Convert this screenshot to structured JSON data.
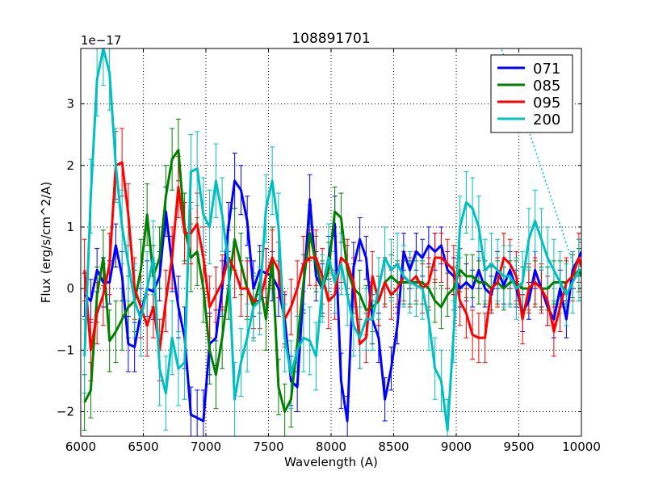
{
  "chart_data": {
    "type": "line",
    "title": "108891701",
    "xlabel": "Wavelength (A)",
    "ylabel": "Flux (erg/s/cm^2/A)",
    "y_offset_label": "1e−17",
    "xlim": [
      6000,
      10000
    ],
    "ylim": [
      -2.4,
      3.9
    ],
    "x_ticks": [
      6000,
      6500,
      7000,
      7500,
      8000,
      8500,
      9000,
      9500,
      10000
    ],
    "x_tick_labels": [
      "6000",
      "6500",
      "7000",
      "7500",
      "8000",
      "8500",
      "9000",
      "9500",
      "10000"
    ],
    "y_ticks": [
      -2,
      -1,
      0,
      1,
      2,
      3
    ],
    "y_tick_labels": [
      "−2",
      "−1",
      "0",
      "1",
      "2",
      "3"
    ],
    "grid": true,
    "legend_position": "top-right",
    "series": [
      {
        "name": "071",
        "color": "#0000ff",
        "x": [
          6030,
          6080,
          6130,
          6180,
          6230,
          6280,
          6330,
          6380,
          6430,
          6480,
          6530,
          6580,
          6630,
          6680,
          6730,
          6780,
          6830,
          6880,
          6930,
          6980,
          7030,
          7080,
          7130,
          7180,
          7230,
          7280,
          7330,
          7380,
          7430,
          7480,
          7530,
          7580,
          7630,
          7680,
          7730,
          7780,
          7830,
          7880,
          7930,
          7980,
          8030,
          8080,
          8130,
          8180,
          8230,
          8280,
          8330,
          8380,
          8430,
          8480,
          8530,
          8580,
          8630,
          8680,
          8730,
          8780,
          8830,
          8880,
          8930,
          8980,
          9030,
          9080,
          9130,
          9180,
          9230,
          9280,
          9330,
          9380,
          9430,
          9480,
          9530,
          9580,
          9630,
          9680,
          9730,
          9780,
          9830,
          9880,
          9930,
          9980,
          10000
        ],
        "y": [
          -0.1,
          -0.2,
          0.3,
          0.1,
          0.1,
          0.7,
          0.2,
          -0.9,
          -0.95,
          -0.4,
          0.0,
          -0.05,
          0.2,
          1.25,
          0.4,
          -0.3,
          -0.8,
          -2.05,
          -2.1,
          -2.15,
          -0.9,
          -0.8,
          0.0,
          1.0,
          1.75,
          1.6,
          1.1,
          0.0,
          0.3,
          0.25,
          0.2,
          0.0,
          -0.5,
          -1.5,
          -1.6,
          0.0,
          1.45,
          0.2,
          0.0,
          0.5,
          1.05,
          -1.5,
          -2.15,
          0.35,
          0.8,
          0.5,
          -0.5,
          -0.8,
          -1.8,
          -1.3,
          -0.6,
          0.6,
          0.3,
          0.6,
          0.5,
          0.7,
          0.6,
          0.7,
          0.3,
          0.2,
          0.0,
          0.1,
          0.0,
          0.3,
          0.0,
          -0.1,
          0.3,
          0.05,
          0.3,
          0.0,
          -0.4,
          -0.2,
          0.3,
          0.0,
          -0.3,
          -0.5,
          0.0,
          -0.5,
          0.3,
          0.5,
          0.6
        ],
        "err": [
          0.35,
          0.35,
          0.35,
          0.4,
          0.35,
          0.35,
          0.4,
          0.45,
          0.4,
          0.4,
          0.45,
          0.45,
          0.4,
          0.4,
          0.45,
          0.5,
          0.5,
          0.45,
          0.45,
          0.5,
          0.5,
          0.45,
          0.45,
          0.4,
          0.45,
          0.4,
          0.4,
          0.45,
          0.4,
          0.4,
          0.4,
          0.45,
          0.4,
          0.4,
          0.4,
          0.4,
          0.4,
          0.4,
          0.4,
          0.35,
          0.45,
          0.45,
          0.4,
          0.4,
          0.35,
          0.35,
          0.4,
          0.4,
          0.35,
          0.35,
          0.3,
          0.3,
          0.3,
          0.3,
          0.3,
          0.3,
          0.3,
          0.3,
          0.3,
          0.3,
          0.3,
          0.3,
          0.3,
          0.3,
          0.3,
          0.3,
          0.3,
          0.3,
          0.3,
          0.3,
          0.3,
          0.3,
          0.3,
          0.3,
          0.3,
          0.3,
          0.3,
          0.3,
          0.3,
          0.3,
          0.3
        ]
      },
      {
        "name": "085",
        "color": "#008000",
        "x": [
          6030,
          6080,
          6130,
          6180,
          6230,
          6280,
          6330,
          6380,
          6430,
          6480,
          6530,
          6580,
          6630,
          6680,
          6730,
          6780,
          6830,
          6880,
          6930,
          6980,
          7030,
          7080,
          7130,
          7180,
          7230,
          7280,
          7330,
          7380,
          7430,
          7480,
          7530,
          7580,
          7630,
          7680,
          7730,
          7780,
          7830,
          7880,
          7930,
          7980,
          8030,
          8080,
          8130,
          8180,
          8230,
          8280,
          8330,
          8380,
          8430,
          8480,
          8530,
          8580,
          8630,
          8680,
          8730,
          8780,
          8830,
          8880,
          8930,
          8980,
          9030,
          9080,
          9130,
          9180,
          9230,
          9280,
          9330,
          9380,
          9430,
          9480,
          9530,
          9580,
          9630,
          9680,
          9730,
          9780,
          9830,
          9880,
          9930,
          9980,
          10000
        ],
        "y": [
          -1.85,
          -1.65,
          -0.1,
          0.5,
          -0.85,
          -0.7,
          -0.5,
          -0.3,
          -0.2,
          0.3,
          1.2,
          0.2,
          0.5,
          1.5,
          2.1,
          2.25,
          1.0,
          0.5,
          0.6,
          0.0,
          -1.0,
          -1.4,
          -0.8,
          0.0,
          0.8,
          0.4,
          0.0,
          -0.3,
          0.1,
          -0.5,
          0.5,
          -1.6,
          -2.0,
          -1.8,
          -0.9,
          0.1,
          0.9,
          0.4,
          0.0,
          0.3,
          1.25,
          1.15,
          0.3,
          0.0,
          -0.1,
          -0.35,
          -0.3,
          -0.2,
          0.1,
          0.2,
          0.1,
          0.1,
          0.1,
          0.1,
          0.1,
          0.0,
          -0.2,
          -0.3,
          -0.1,
          0.0,
          0.3,
          0.2,
          0.2,
          0.1,
          0.1,
          0.0,
          0.1,
          0.0,
          0.1,
          0.1,
          0.0,
          0.0,
          0.1,
          0.0,
          0.0,
          0.1,
          0.1,
          0.1,
          0.2,
          0.3,
          0.2
        ],
        "err": [
          0.45,
          0.45,
          0.45,
          0.45,
          0.5,
          0.5,
          0.5,
          0.5,
          0.5,
          0.5,
          0.5,
          0.5,
          0.5,
          0.5,
          0.5,
          0.5,
          0.55,
          0.55,
          0.55,
          0.55,
          0.55,
          0.55,
          0.5,
          0.5,
          0.5,
          0.5,
          0.5,
          0.5,
          0.5,
          0.5,
          0.5,
          0.45,
          0.45,
          0.45,
          0.45,
          0.45,
          0.45,
          0.45,
          0.45,
          0.45,
          0.4,
          0.4,
          0.4,
          0.4,
          0.4,
          0.4,
          0.4,
          0.4,
          0.35,
          0.35,
          0.35,
          0.35,
          0.35,
          0.35,
          0.35,
          0.35,
          0.35,
          0.35,
          0.35,
          0.35,
          0.35,
          0.35,
          0.35,
          0.35,
          0.35,
          0.35,
          0.35,
          0.35,
          0.35,
          0.35,
          0.35,
          0.35,
          0.35,
          0.35,
          0.35,
          0.35,
          0.35,
          0.35,
          0.35,
          0.35,
          0.35
        ]
      },
      {
        "name": "095",
        "color": "#ff0000",
        "x": [
          6030,
          6080,
          6130,
          6180,
          6230,
          6280,
          6330,
          6380,
          6430,
          6480,
          6530,
          6580,
          6630,
          6680,
          6730,
          6780,
          6830,
          6880,
          6930,
          6980,
          7030,
          7080,
          7130,
          7180,
          7230,
          7280,
          7330,
          7380,
          7430,
          7480,
          7530,
          7580,
          7630,
          7680,
          7730,
          7780,
          7830,
          7880,
          7930,
          7980,
          8030,
          8080,
          8130,
          8180,
          8230,
          8280,
          8330,
          8380,
          8430,
          8480,
          8530,
          8580,
          8630,
          8680,
          8730,
          8780,
          8830,
          8880,
          8930,
          8980,
          9030,
          9080,
          9130,
          9180,
          9230,
          9280,
          9330,
          9380,
          9430,
          9480,
          9530,
          9580,
          9630,
          9680,
          9730,
          9780,
          9830,
          9880,
          9930,
          9980,
          10000
        ],
        "y": [
          0.3,
          -1.0,
          -0.4,
          -0.1,
          0.4,
          2.0,
          2.05,
          1.2,
          0.0,
          -0.3,
          -0.6,
          -0.3,
          -1.0,
          -0.2,
          0.5,
          1.65,
          0.9,
          0.9,
          1.05,
          0.5,
          -0.3,
          -0.1,
          0.1,
          0.5,
          0.3,
          0.0,
          0.0,
          -0.2,
          -0.2,
          0.2,
          0.5,
          0.3,
          -0.5,
          -0.3,
          0.0,
          0.4,
          0.5,
          0.5,
          0.2,
          -0.2,
          -0.1,
          0.5,
          0.4,
          0.1,
          -0.9,
          -0.8,
          0.2,
          -0.2,
          0.1,
          -0.1,
          0.0,
          0.2,
          0.1,
          0.2,
          0.0,
          0.1,
          0.5,
          0.5,
          0.4,
          0.3,
          -0.2,
          -0.4,
          -0.75,
          -0.8,
          -0.8,
          0.0,
          0.1,
          0.5,
          0.4,
          0.2,
          -0.5,
          0.0,
          0.1,
          0.0,
          -0.2,
          -0.7,
          -0.3,
          0.1,
          0.2,
          0.5,
          0.35
        ],
        "err": [
          0.5,
          0.5,
          0.5,
          0.5,
          0.5,
          0.55,
          0.55,
          0.5,
          0.5,
          0.5,
          0.5,
          0.5,
          0.5,
          0.5,
          0.5,
          0.5,
          0.5,
          0.5,
          0.5,
          0.5,
          0.5,
          0.45,
          0.45,
          0.45,
          0.45,
          0.45,
          0.45,
          0.45,
          0.45,
          0.45,
          0.45,
          0.45,
          0.45,
          0.45,
          0.45,
          0.45,
          0.45,
          0.45,
          0.45,
          0.45,
          0.4,
          0.4,
          0.4,
          0.4,
          0.4,
          0.4,
          0.4,
          0.4,
          0.4,
          0.4,
          0.4,
          0.4,
          0.4,
          0.4,
          0.4,
          0.4,
          0.4,
          0.4,
          0.4,
          0.4,
          0.4,
          0.4,
          0.4,
          0.4,
          0.4,
          0.4,
          0.4,
          0.4,
          0.4,
          0.4,
          0.4,
          0.4,
          0.4,
          0.4,
          0.4,
          0.4,
          0.4,
          0.4,
          0.4,
          0.4,
          0.4
        ]
      },
      {
        "name": "200",
        "color": "#00bfbf",
        "x": [
          6030,
          6080,
          6130,
          6180,
          6230,
          6280,
          6330,
          6380,
          6430,
          6480,
          6530,
          6580,
          6630,
          6680,
          6730,
          6780,
          6830,
          6880,
          6930,
          6980,
          7030,
          7080,
          7130,
          7180,
          7230,
          7280,
          7330,
          7380,
          7430,
          7480,
          7530,
          7580,
          7630,
          7680,
          7730,
          7780,
          7830,
          7880,
          7930,
          7980,
          8030,
          8080,
          8130,
          8180,
          8230,
          8280,
          8330,
          8380,
          8430,
          8480,
          8530,
          8580,
          8630,
          8680,
          8730,
          8780,
          8830,
          8880,
          8930,
          8980,
          9030,
          9080,
          9130,
          9180,
          9230,
          9280,
          9330,
          9380,
          9430,
          9480,
          9530,
          9580,
          9630,
          9680,
          9730,
          9780,
          9830,
          9880,
          9930,
          9980,
          10000
        ],
        "y": [
          -1.1,
          1.5,
          3.4,
          3.9,
          3.5,
          2.0,
          1.0,
          0.4,
          -0.2,
          -0.5,
          0.0,
          0.5,
          -1.3,
          -1.7,
          -0.8,
          -1.3,
          -1.2,
          1.9,
          1.95,
          1.2,
          1.0,
          1.75,
          1.2,
          0.4,
          -1.8,
          -1.2,
          -0.8,
          -0.3,
          -0.2,
          1.3,
          1.75,
          1.0,
          -0.8,
          -1.4,
          -1.0,
          -0.8,
          -0.85,
          -1.1,
          0.0,
          0.5,
          0.1,
          0.4,
          -0.1,
          -0.6,
          -0.8,
          -0.5,
          -0.5,
          0.0,
          0.5,
          0.3,
          0.4,
          0.2,
          0.1,
          0.05,
          0.0,
          -0.5,
          -1.3,
          -1.5,
          -2.3,
          -0.7,
          1.0,
          1.4,
          1.3,
          1.0,
          0.3,
          0.4,
          0.3,
          0.2,
          0.2,
          0.0,
          0.1,
          0.8,
          1.1,
          0.8,
          0.5,
          0.3,
          0.1,
          -0.1,
          0.1,
          0.3,
          0.3
        ],
        "err": [
          0.6,
          0.6,
          0.6,
          0.6,
          0.6,
          0.6,
          0.6,
          0.6,
          0.6,
          0.6,
          0.6,
          0.6,
          0.6,
          0.6,
          0.6,
          0.6,
          0.6,
          0.6,
          0.6,
          0.6,
          0.6,
          0.6,
          0.6,
          0.6,
          0.6,
          0.55,
          0.55,
          0.55,
          0.55,
          0.55,
          0.55,
          0.55,
          0.55,
          0.55,
          0.55,
          0.55,
          0.55,
          0.55,
          0.55,
          0.55,
          0.5,
          0.5,
          0.5,
          0.5,
          0.5,
          0.5,
          0.5,
          0.5,
          0.5,
          0.5,
          0.5,
          0.5,
          0.5,
          0.5,
          0.5,
          0.5,
          0.5,
          0.5,
          0.5,
          0.5,
          0.5,
          0.5,
          0.5,
          0.5,
          0.5,
          0.5,
          0.5,
          0.5,
          0.5,
          0.5,
          0.5,
          0.5,
          0.5,
          0.5,
          0.5,
          0.5,
          0.5,
          0.5,
          0.5,
          0.5,
          0.5
        ]
      }
    ],
    "extra_lines": [
      {
        "name": "200-dotted-extension",
        "color": "#00bfbf",
        "style": "dotted",
        "x": [
          9100,
          9950
        ],
        "y": [
          5.5,
          0.3
        ]
      }
    ]
  }
}
